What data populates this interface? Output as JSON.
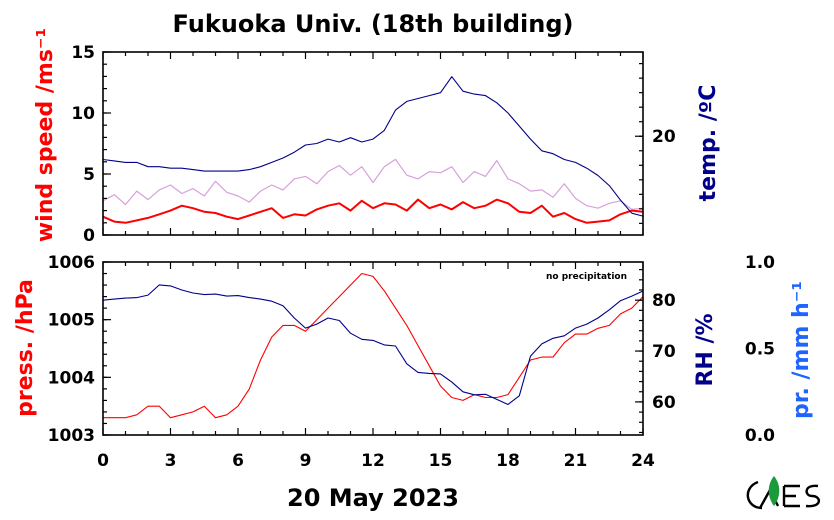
{
  "title": "Fukuoka Univ. (18th building)",
  "date_label": "20 May 2023",
  "note": "no precipitation",
  "colors": {
    "wind_gust": "#d8a0dc",
    "wind_mean": "#ff0000",
    "temperature": "#00008b",
    "pressure": "#ff0000",
    "humidity": "#00008b",
    "precip_axis": "#1e64ff"
  },
  "chart_data": [
    {
      "type": "line",
      "panel": "top",
      "x_ticks": [
        "0",
        "3",
        "6",
        "9",
        "12",
        "15",
        "18",
        "21",
        "24"
      ],
      "xlim": [
        0,
        24
      ],
      "left_axis": {
        "label": "wind speed /ms⁻¹",
        "ylim": [
          0,
          15
        ],
        "ticks": [
          "0",
          "5",
          "10",
          "15"
        ]
      },
      "right_axis": {
        "label": "temp. /ºC",
        "ylim": [
          13.2,
          25.8
        ],
        "ticks": [
          "20"
        ]
      },
      "series": [
        {
          "key": "wind_gust",
          "axis": "left",
          "x": [
            0,
            0.5,
            1,
            1.5,
            2,
            2.5,
            3,
            3.5,
            4,
            4.5,
            5,
            5.5,
            6,
            6.5,
            7,
            7.5,
            8,
            8.5,
            9,
            9.5,
            10,
            10.5,
            11,
            11.5,
            12,
            12.5,
            13,
            13.5,
            14,
            14.5,
            15,
            15.5,
            16,
            16.5,
            17,
            17.5,
            18,
            18.5,
            19,
            19.5,
            20,
            20.5,
            21,
            21.5,
            22,
            22.5,
            23,
            23.5,
            24
          ],
          "y": [
            2.8,
            3.3,
            2.5,
            3.6,
            2.9,
            3.7,
            4.1,
            3.4,
            3.8,
            3.2,
            4.4,
            3.5,
            3.2,
            2.7,
            3.6,
            4.1,
            3.7,
            4.6,
            4.8,
            4.2,
            5.2,
            5.7,
            4.9,
            5.6,
            4.3,
            5.6,
            6.2,
            4.9,
            4.6,
            5.2,
            5.1,
            5.6,
            4.3,
            5.2,
            4.8,
            6.1,
            4.6,
            4.2,
            3.6,
            3.7,
            3.1,
            4.2,
            3.0,
            2.4,
            2.2,
            2.6,
            2.8,
            2.1,
            2.2
          ]
        },
        {
          "key": "wind_mean",
          "axis": "left",
          "x": [
            0,
            0.5,
            1,
            1.5,
            2,
            2.5,
            3,
            3.5,
            4,
            4.5,
            5,
            5.5,
            6,
            6.5,
            7,
            7.5,
            8,
            8.5,
            9,
            9.5,
            10,
            10.5,
            11,
            11.5,
            12,
            12.5,
            13,
            13.5,
            14,
            14.5,
            15,
            15.5,
            16,
            16.5,
            17,
            17.5,
            18,
            18.5,
            19,
            19.5,
            20,
            20.5,
            21,
            21.5,
            22,
            22.5,
            23,
            23.5,
            24
          ],
          "y": [
            1.5,
            1.1,
            1.0,
            1.2,
            1.4,
            1.7,
            2.0,
            2.4,
            2.2,
            1.9,
            1.8,
            1.5,
            1.3,
            1.6,
            1.9,
            2.2,
            1.4,
            1.7,
            1.6,
            2.1,
            2.4,
            2.6,
            2.0,
            2.8,
            2.2,
            2.6,
            2.5,
            2.0,
            2.9,
            2.2,
            2.5,
            2.1,
            2.7,
            2.2,
            2.4,
            2.9,
            2.6,
            1.9,
            1.8,
            2.4,
            1.5,
            1.8,
            1.3,
            1.0,
            1.1,
            1.2,
            1.7,
            2.0,
            1.9
          ]
        },
        {
          "key": "temperature",
          "axis": "right",
          "x": [
            0,
            0.5,
            1,
            1.5,
            2,
            2.5,
            3,
            3.5,
            4,
            4.5,
            5,
            5.5,
            6,
            6.5,
            7,
            7.5,
            8,
            8.5,
            9,
            9.5,
            10,
            10.5,
            11,
            11.5,
            12,
            12.5,
            13,
            13.5,
            14,
            14.5,
            15,
            15.5,
            16,
            16.5,
            17,
            17.5,
            18,
            18.5,
            19,
            19.5,
            20,
            20.5,
            21,
            21.5,
            22,
            22.5,
            23,
            23.5,
            24
          ],
          "y": [
            18.4,
            18.3,
            18.2,
            18.2,
            17.9,
            17.9,
            17.8,
            17.8,
            17.7,
            17.6,
            17.6,
            17.6,
            17.6,
            17.7,
            17.9,
            18.2,
            18.5,
            18.9,
            19.4,
            19.5,
            19.8,
            19.6,
            19.9,
            19.6,
            19.8,
            20.4,
            21.8,
            22.4,
            22.6,
            22.8,
            23.0,
            24.1,
            23.1,
            22.9,
            22.8,
            22.3,
            21.6,
            20.7,
            19.8,
            19.0,
            18.8,
            18.4,
            18.2,
            17.8,
            17.3,
            16.6,
            15.6,
            14.7,
            14.5
          ]
        }
      ]
    },
    {
      "type": "line",
      "panel": "bottom",
      "x_ticks": [
        "0",
        "3",
        "6",
        "9",
        "12",
        "15",
        "18",
        "21",
        "24"
      ],
      "xlim": [
        0,
        24
      ],
      "xlabel": "20 May 2023",
      "left_axis": {
        "label": "press. /hPa",
        "ylim": [
          1003,
          1006
        ],
        "ticks": [
          "1003",
          "1004",
          "1005",
          "1006"
        ]
      },
      "right_axis": {
        "label": "RH /%",
        "ylim": [
          53.5,
          87.5
        ],
        "ticks": [
          "60",
          "70",
          "80"
        ]
      },
      "far_right_axis": {
        "label": "pr. /mm h⁻¹",
        "ylim": [
          0,
          1
        ],
        "ticks": [
          "0.0",
          "0.5",
          "1.0"
        ]
      },
      "series": [
        {
          "key": "pressure",
          "axis": "left",
          "x": [
            0,
            0.5,
            1,
            1.5,
            2,
            2.5,
            3,
            3.5,
            4,
            4.5,
            5,
            5.5,
            6,
            6.5,
            7,
            7.5,
            8,
            8.5,
            9,
            9.5,
            10,
            10.5,
            11,
            11.5,
            12,
            12.5,
            13,
            13.5,
            14,
            14.5,
            15,
            15.5,
            16,
            16.5,
            17,
            17.5,
            18,
            18.5,
            19,
            19.5,
            20,
            20.5,
            21,
            21.5,
            22,
            22.5,
            23,
            23.5,
            24
          ],
          "y": [
            1003.3,
            1003.3,
            1003.3,
            1003.35,
            1003.5,
            1003.5,
            1003.3,
            1003.35,
            1003.4,
            1003.5,
            1003.3,
            1003.35,
            1003.5,
            1003.8,
            1004.3,
            1004.7,
            1004.9,
            1004.9,
            1004.8,
            1005.0,
            1005.2,
            1005.4,
            1005.6,
            1005.8,
            1005.75,
            1005.5,
            1005.2,
            1004.9,
            1004.55,
            1004.2,
            1003.85,
            1003.65,
            1003.6,
            1003.7,
            1003.65,
            1003.65,
            1003.7,
            1004.0,
            1004.3,
            1004.35,
            1004.35,
            1004.6,
            1004.75,
            1004.75,
            1004.85,
            1004.9,
            1005.1,
            1005.2,
            1005.4
          ]
        },
        {
          "key": "humidity",
          "axis": "right",
          "x": [
            0,
            0.5,
            1,
            1.5,
            2,
            2.5,
            3,
            3.5,
            4,
            4.5,
            5,
            5.5,
            6,
            6.5,
            7,
            7.5,
            8,
            8.5,
            9,
            9.5,
            10,
            10.5,
            11,
            11.5,
            12,
            12.5,
            13,
            13.5,
            14,
            14.5,
            15,
            15.5,
            16,
            16.5,
            17,
            17.5,
            18,
            18.5,
            19,
            19.5,
            20,
            20.5,
            21,
            21.5,
            22,
            22.5,
            23,
            23.5,
            24
          ],
          "y": [
            80.0,
            80.2,
            80.4,
            80.5,
            81.0,
            83.0,
            82.8,
            82.0,
            81.4,
            81.1,
            81.2,
            80.8,
            80.9,
            80.5,
            80.2,
            79.8,
            78.9,
            76.5,
            74.5,
            75.3,
            76.5,
            76.0,
            73.5,
            72.3,
            72.1,
            71.2,
            71.0,
            67.5,
            65.8,
            65.6,
            65.5,
            63.9,
            62.0,
            61.4,
            61.5,
            60.5,
            59.5,
            61.2,
            69.0,
            71.4,
            72.5,
            73.0,
            74.5,
            75.3,
            76.5,
            78.1,
            79.9,
            80.8,
            81.8
          ]
        }
      ]
    }
  ]
}
